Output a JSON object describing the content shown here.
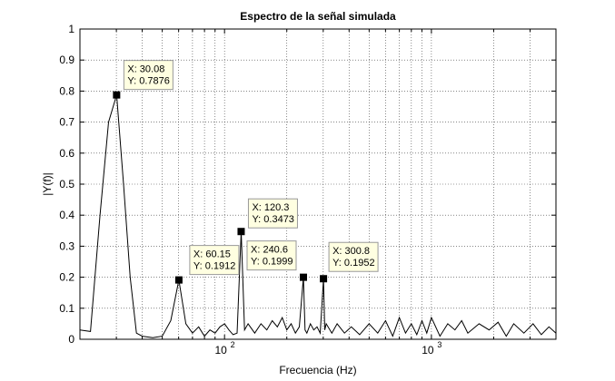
{
  "chart_data": {
    "type": "line",
    "title": "Espectro de la señal simulada",
    "xlabel": "Frecuencia (Hz)",
    "ylabel": "|Y(f)|",
    "xscale": "log",
    "xlim": [
      20,
      4000
    ],
    "ylim": [
      0,
      1
    ],
    "grid": true,
    "x_ticks": [
      100,
      1000
    ],
    "x_tick_labels": [
      {
        "base": "10",
        "exp": "2"
      },
      {
        "base": "10",
        "exp": "3"
      }
    ],
    "y_ticks": [
      0,
      0.1,
      0.2,
      0.3,
      0.4,
      0.5,
      0.6,
      0.7,
      0.8,
      0.9,
      1
    ],
    "y_tick_labels": [
      "0",
      "0.1",
      "0.2",
      "0.3",
      "0.4",
      "0.5",
      "0.6",
      "0.7",
      "0.8",
      "0.9",
      "1"
    ],
    "line_color": "#000000",
    "series": [
      {
        "x": [
          20,
          22.5,
          25,
          27.5,
          30.08,
          32.5,
          35,
          37.5,
          40,
          45,
          50,
          55,
          60.15,
          65,
          70,
          75,
          80,
          85,
          90,
          95,
          100,
          105,
          110,
          115,
          120.3,
          125,
          130,
          140,
          150,
          160,
          170,
          180,
          190,
          200,
          210,
          220,
          230,
          240.6,
          245,
          250,
          260,
          270,
          280,
          290,
          300.8,
          305,
          310,
          330,
          350,
          380,
          410,
          450,
          500,
          550,
          600,
          650,
          700,
          750,
          800,
          850,
          900,
          950,
          1000,
          1100,
          1200,
          1300,
          1400,
          1500,
          1700,
          1900,
          2100,
          2300,
          2500,
          2800,
          3100,
          3400,
          3700,
          4000
        ],
        "y": [
          0.03,
          0.025,
          0.4,
          0.7,
          0.7876,
          0.5,
          0.2,
          0.02,
          0.01,
          0.005,
          0.01,
          0.06,
          0.1912,
          0.05,
          0.02,
          0.04,
          0.01,
          0.03,
          0.02,
          0.04,
          0.05,
          0.03,
          0.015,
          0.02,
          0.3473,
          0.03,
          0.05,
          0.02,
          0.05,
          0.03,
          0.06,
          0.04,
          0.07,
          0.03,
          0.05,
          0.02,
          0.04,
          0.1999,
          0.03,
          0.02,
          0.05,
          0.03,
          0.04,
          0.02,
          0.1952,
          0.03,
          0.05,
          0.02,
          0.05,
          0.02,
          0.04,
          0.015,
          0.05,
          0.02,
          0.06,
          0.01,
          0.07,
          0.02,
          0.05,
          0.015,
          0.06,
          0.02,
          0.07,
          0.01,
          0.05,
          0.03,
          0.06,
          0.02,
          0.05,
          0.03,
          0.055,
          0.01,
          0.05,
          0.02,
          0.05,
          0.015,
          0.04,
          0.02
        ]
      }
    ],
    "data_tips": [
      {
        "x": 30.08,
        "y": 0.7876,
        "x_text": "X: 30.08",
        "y_text": "Y: 0.7876"
      },
      {
        "x": 60.15,
        "y": 0.1912,
        "x_text": "X: 60.15",
        "y_text": "Y: 0.1912"
      },
      {
        "x": 120.3,
        "y": 0.3473,
        "x_text": "X: 120.3",
        "y_text": "Y: 0.3473"
      },
      {
        "x": 240.6,
        "y": 0.1999,
        "x_text": "X: 240.6",
        "y_text": "Y: 0.1999"
      },
      {
        "x": 300.8,
        "y": 0.1952,
        "x_text": "X: 300.8",
        "y_text": "Y: 0.1952"
      }
    ],
    "data_tip_style": {
      "fill": "#ffffe1",
      "stroke": "#999999",
      "marker": "#000000"
    }
  }
}
